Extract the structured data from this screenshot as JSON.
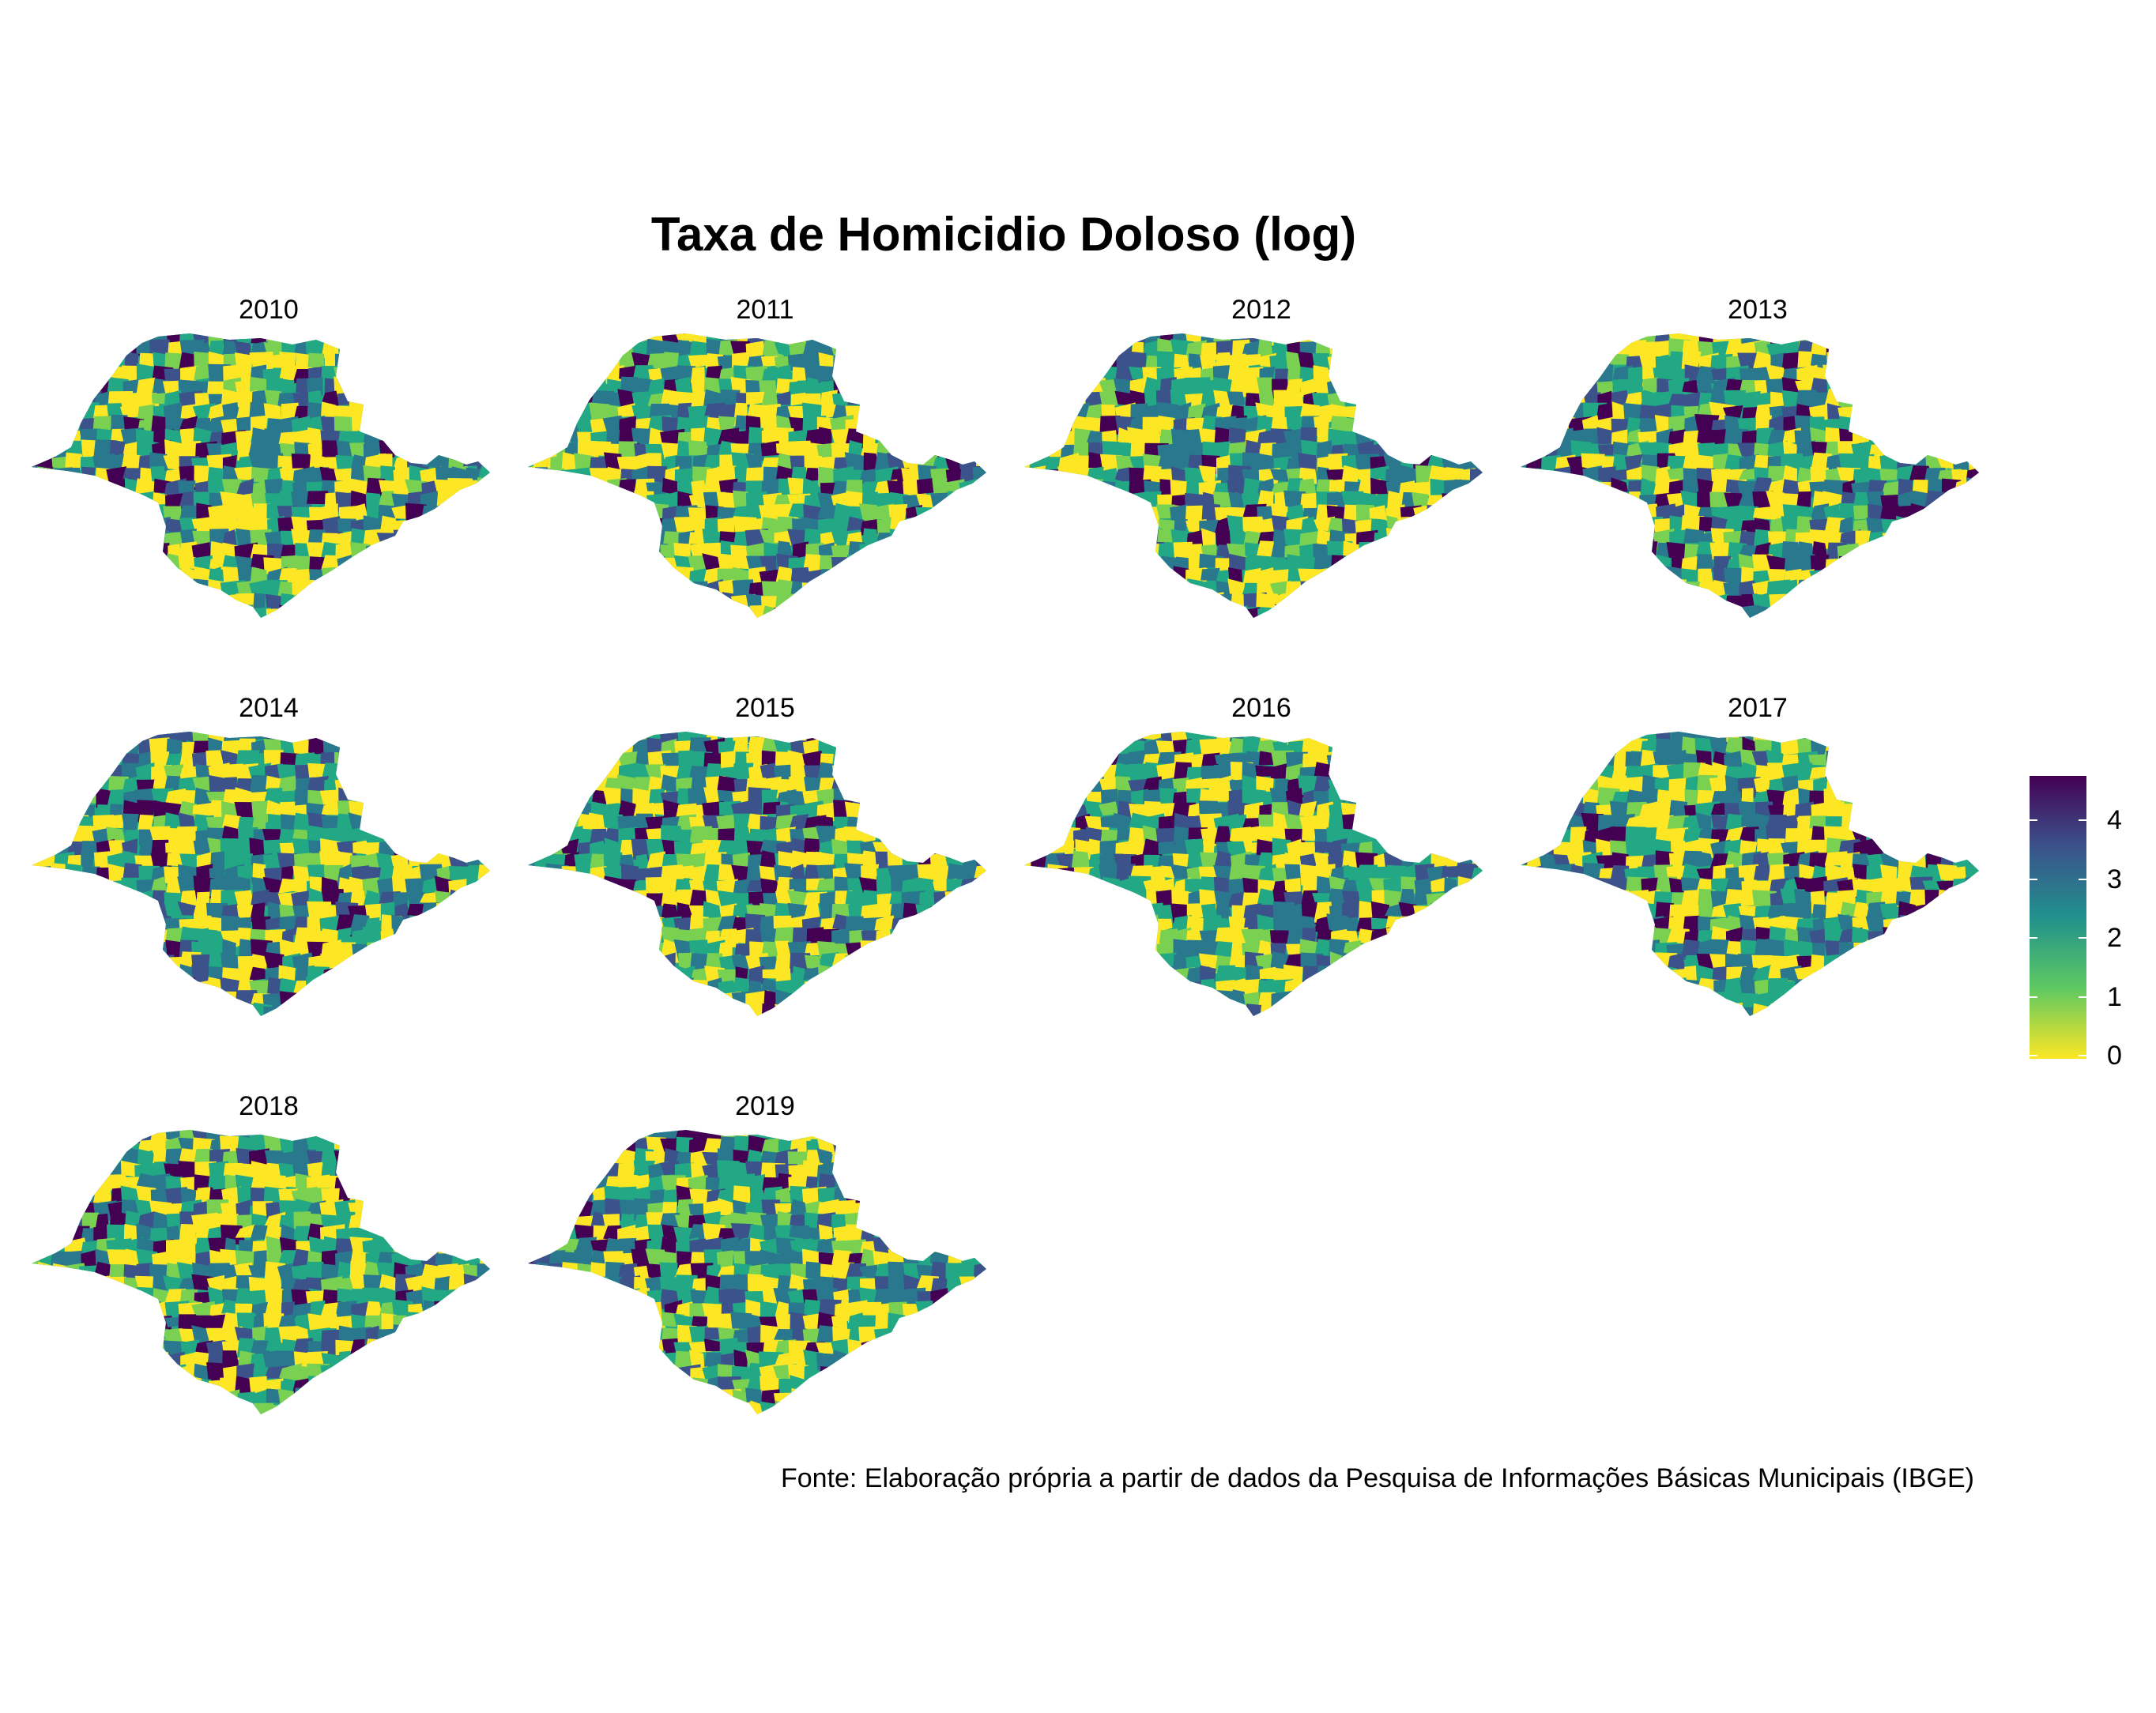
{
  "title": "Taxa de Homicidio Doloso (log)",
  "caption": "Fonte: Elaboração própria a partir de dados da Pesquisa de Informações Básicas Municipais (IBGE)",
  "panels": [
    "2010",
    "2011",
    "2012",
    "2013",
    "2014",
    "2015",
    "2016",
    "2017",
    "2018",
    "2019"
  ],
  "legend": {
    "ticks": [
      "0",
      "1",
      "2",
      "3",
      "4"
    ],
    "tick_values": [
      0,
      1,
      2,
      3,
      4
    ],
    "range": [
      0,
      4.7
    ],
    "palette": [
      "#fde725",
      "#5ec962",
      "#21918c",
      "#3b528b",
      "#440154"
    ]
  },
  "colors": {
    "yellow": "#fde725",
    "light_green": "#7ad151",
    "green": "#22a884",
    "teal": "#2a788e",
    "blue": "#3b528b",
    "purple": "#440154"
  }
}
